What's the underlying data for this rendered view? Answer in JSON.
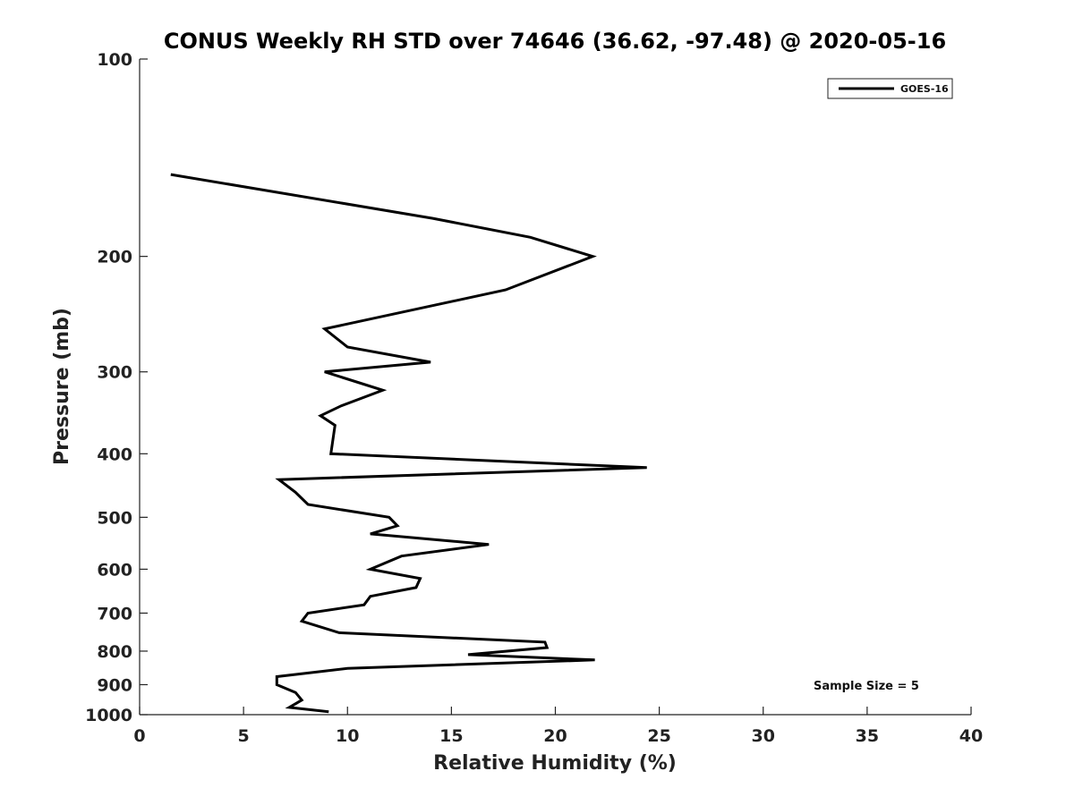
{
  "chart_data": {
    "type": "line",
    "title": "CONUS Weekly RH STD over 74646 (36.62, -97.48) @ 2020-05-16",
    "xlabel": "Relative Humidity (%)",
    "ylabel": "Pressure (mb)",
    "xlim": [
      0,
      40
    ],
    "ylim": [
      100,
      1000
    ],
    "y_scale": "log",
    "y_reversed": true,
    "x_ticks": [
      "0",
      "5",
      "10",
      "15",
      "20",
      "25",
      "30",
      "35",
      "40"
    ],
    "y_ticks": [
      "100",
      "200",
      "300",
      "400",
      "500",
      "600",
      "700",
      "800",
      "900",
      "1000"
    ],
    "grid": false,
    "legend_position": "top-right",
    "annotation": "Sample Size = 5",
    "series": [
      {
        "name": "GOES-16",
        "color": "#000000",
        "points": [
          [
            1.5,
            150
          ],
          [
            14.1,
            175
          ],
          [
            18.8,
            187
          ],
          [
            21.8,
            200
          ],
          [
            17.6,
            225
          ],
          [
            8.9,
            258
          ],
          [
            10.0,
            275
          ],
          [
            14.0,
            290
          ],
          [
            8.9,
            300
          ],
          [
            11.7,
            320
          ],
          [
            9.7,
            338
          ],
          [
            8.7,
            350
          ],
          [
            9.4,
            362
          ],
          [
            9.2,
            400
          ],
          [
            24.4,
            420
          ],
          [
            6.7,
            438
          ],
          [
            7.5,
            458
          ],
          [
            8.1,
            478
          ],
          [
            12.0,
            500
          ],
          [
            12.4,
            515
          ],
          [
            11.1,
            530
          ],
          [
            16.8,
            550
          ],
          [
            12.6,
            573
          ],
          [
            11.1,
            600
          ],
          [
            13.5,
            620
          ],
          [
            13.3,
            640
          ],
          [
            11.1,
            660
          ],
          [
            10.8,
            680
          ],
          [
            8.1,
            700
          ],
          [
            7.8,
            720
          ],
          [
            9.6,
            750
          ],
          [
            19.5,
            775
          ],
          [
            19.6,
            790
          ],
          [
            15.8,
            810
          ],
          [
            21.9,
            825
          ],
          [
            10.0,
            850
          ],
          [
            6.6,
            875
          ],
          [
            6.6,
            900
          ],
          [
            7.5,
            925
          ],
          [
            7.8,
            950
          ],
          [
            7.2,
            975
          ],
          [
            9.1,
            990
          ]
        ]
      }
    ]
  }
}
